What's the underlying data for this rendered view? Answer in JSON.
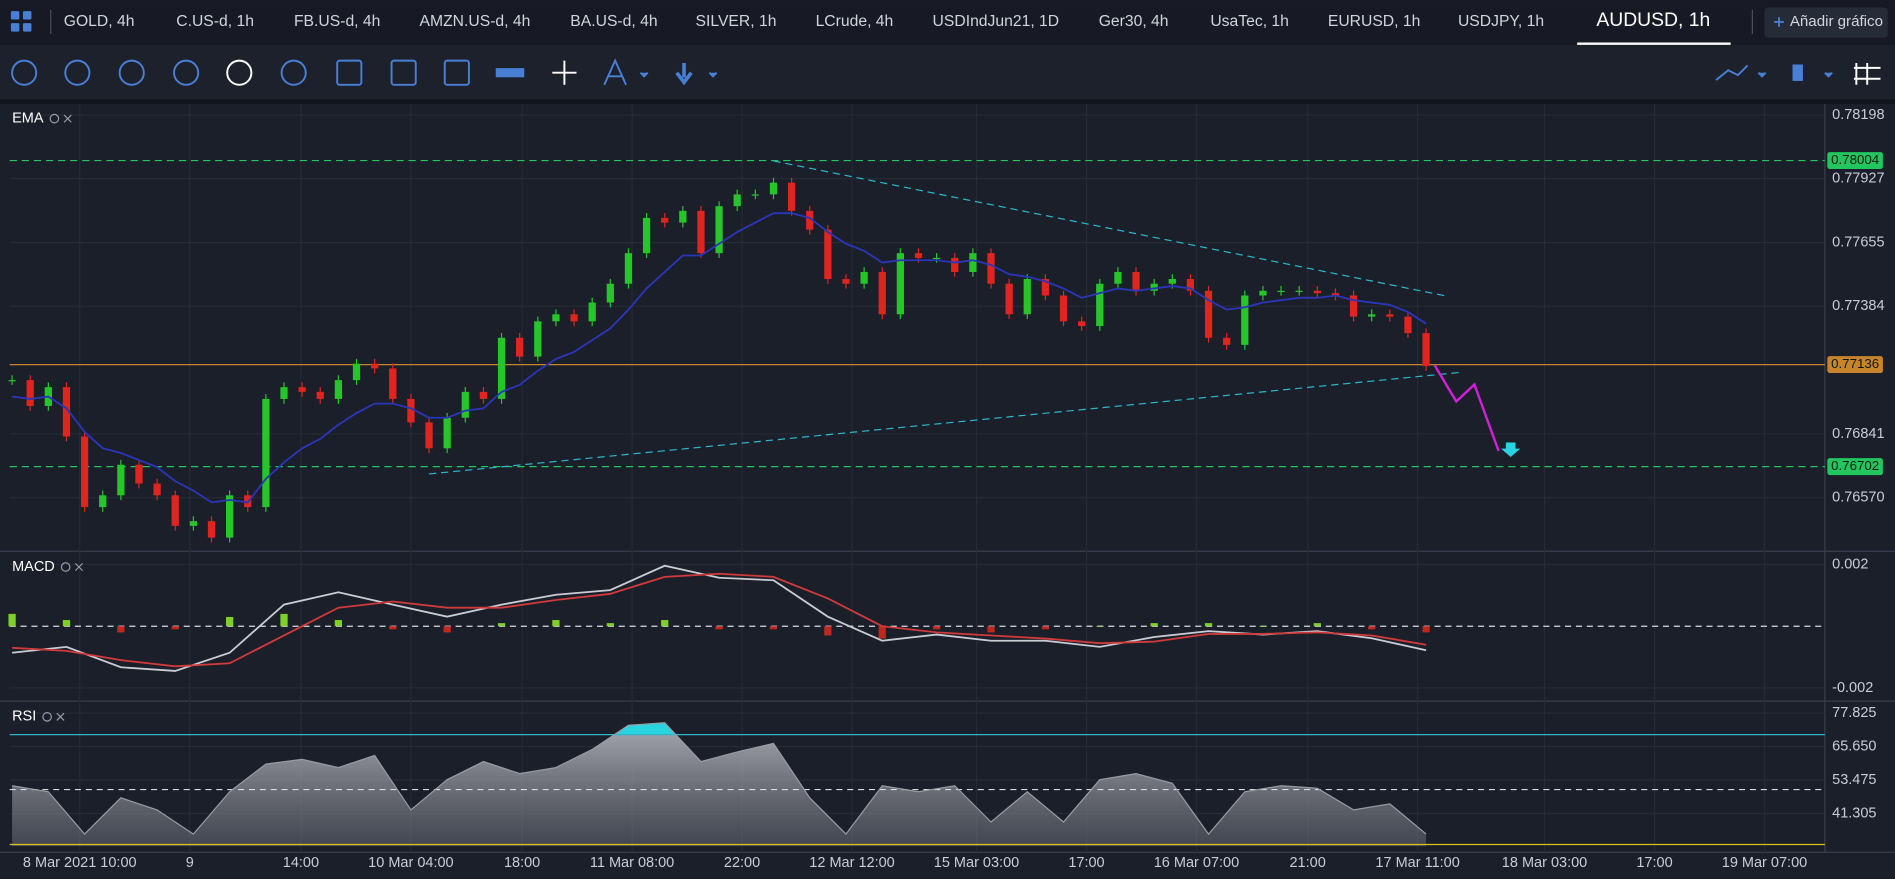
{
  "tabs": [
    "GOLD, 4h",
    "C.US-d, 1h",
    "FB.US-d, 4h",
    "AMZN.US-d, 4h",
    "BA.US-d, 4h",
    "SILVER, 1h",
    "LCrude, 4h",
    "USDIndJun21, 1D",
    "Ger30, 4h",
    "UsaTec, 1h",
    "EURUSD, 1h",
    "USDJPY, 1h"
  ],
  "active_tab": "AUDUSD, 1h",
  "add_chart_button": "Añadir gráfico",
  "chart_data": [
    {
      "type": "candlestick",
      "title": "EMA",
      "up_color": "#26c52a",
      "down_color": "#e0241f",
      "ema_color": "#2a35b8",
      "closes": [
        0.7707,
        0.7696,
        0.7704,
        0.7683,
        0.7653,
        0.7658,
        0.7671,
        0.7663,
        0.7658,
        0.7645,
        0.7647,
        0.764,
        0.7658,
        0.7653,
        0.7699,
        0.7704,
        0.7702,
        0.7699,
        0.7707,
        0.7714,
        0.7712,
        0.7699,
        0.7689,
        0.7678,
        0.7691,
        0.7702,
        0.7699,
        0.7725,
        0.7717,
        0.7732,
        0.7735,
        0.7732,
        0.774,
        0.7748,
        0.7761,
        0.7776,
        0.7774,
        0.7779,
        0.7761,
        0.7781,
        0.7786,
        0.7786,
        0.7791,
        0.7779,
        0.7771,
        0.775,
        0.7748,
        0.7753,
        0.7735,
        0.7761,
        0.7759,
        0.7759,
        0.7753,
        0.7761,
        0.7748,
        0.7735,
        0.775,
        0.7743,
        0.7732,
        0.773,
        0.7748,
        0.7753,
        0.7745,
        0.7748,
        0.775,
        0.7745,
        0.7725,
        0.7722,
        0.7743,
        0.7745,
        0.7745,
        0.7745,
        0.7744,
        0.7743,
        0.7734,
        0.7735,
        0.7734,
        0.7727,
        0.7713
      ],
      "ema": [
        0.77,
        0.7699,
        0.77,
        0.7695,
        0.7685,
        0.7678,
        0.7676,
        0.7673,
        0.767,
        0.7664,
        0.766,
        0.7655,
        0.7656,
        0.7655,
        0.7665,
        0.7672,
        0.7678,
        0.7682,
        0.7688,
        0.7693,
        0.7697,
        0.7697,
        0.7695,
        0.7691,
        0.7691,
        0.7694,
        0.7695,
        0.7702,
        0.7705,
        0.7711,
        0.7716,
        0.7719,
        0.7724,
        0.7729,
        0.7737,
        0.7746,
        0.7753,
        0.776,
        0.776,
        0.7765,
        0.777,
        0.7774,
        0.7778,
        0.7778,
        0.7776,
        0.777,
        0.7765,
        0.7762,
        0.7757,
        0.7758,
        0.7758,
        0.7758,
        0.7757,
        0.7758,
        0.7756,
        0.7752,
        0.7751,
        0.7749,
        0.7746,
        0.7742,
        0.7744,
        0.7746,
        0.7745,
        0.7746,
        0.7747,
        0.7746,
        0.7741,
        0.7737,
        0.7738,
        0.774,
        0.7741,
        0.7742,
        0.7742,
        0.7743,
        0.7741,
        0.774,
        0.7739,
        0.7736,
        0.7731
      ],
      "ylim": [
        0.76347,
        0.78244
      ],
      "yticks": [
        0.78198,
        0.77927,
        0.77655,
        0.77384,
        0.76841,
        {
          "value": 0.7657,
          "label": "0.76570"
        }
      ],
      "levels": [
        {
          "value": 0.78004,
          "color": "#22c55e"
        },
        {
          "value": 0.77136,
          "color": "#c8842a"
        },
        {
          "value": 0.76702,
          "color": "#22c55e"
        }
      ],
      "x_labels": [
        "8 Mar 2021 10:00",
        "9",
        "14:00",
        "10 Mar 04:00",
        "18:00",
        "11 Mar 08:00",
        "22:00",
        "12 Mar 12:00",
        "15 Mar 03:00",
        "17:00",
        "16 Mar 07:00",
        "21:00",
        "17 Mar 11:00",
        "18 Mar 03:00",
        "17:00",
        "19 Mar 07:00"
      ]
    },
    {
      "type": "macd",
      "title": "MACD",
      "macd_color": "#c9ccd3",
      "signal_color": "#d03a3a",
      "macd": [
        -0.00086,
        -0.00067,
        -0.00133,
        -0.00145,
        -0.00086,
        0.0007,
        0.0011,
        0.0007,
        0.00031,
        0.0007,
        0.00102,
        0.00117,
        0.00196,
        0.00157,
        0.00149,
        0.00031,
        -0.00047,
        -0.00027,
        -0.00047,
        -0.00047,
        -0.00067,
        -0.00035,
        -0.00016,
        -0.00027,
        -0.00016,
        -0.00039,
        -0.00078
      ],
      "signal": [
        -0.0007,
        -0.0008,
        -0.0011,
        -0.0013,
        -0.0012,
        -0.0003,
        0.0006,
        0.0008,
        0.0006,
        0.0006,
        0.00085,
        0.00105,
        0.0016,
        0.0017,
        0.0016,
        0.0009,
        0.0,
        -0.0002,
        -0.0003,
        -0.0004,
        -0.00055,
        -0.0005,
        -0.00025,
        -0.00025,
        -0.0002,
        -0.0003,
        -0.0006
      ],
      "histogram": [
        0.0004,
        0.0002,
        -0.0002,
        -0.0001,
        0.0003,
        0.0004,
        0.0002,
        -0.0001,
        -0.0002,
        0.0001,
        0.0002,
        0.0001,
        0.0002,
        -0.0001,
        -0.0001,
        -0.0003,
        -0.0004,
        -0.0001,
        -0.0002,
        -0.0001,
        0,
        0.0001,
        0.0001,
        0,
        0.0001,
        -0.0001,
        -0.0002
      ],
      "ylim": [
        -0.00235,
        0.00235
      ],
      "yticks": [
        0.002,
        -0.002
      ]
    },
    {
      "type": "rsi",
      "title": "RSI",
      "color": "#9a9ca3",
      "overbought_color": "#2bd3e0",
      "values": [
        51.4,
        49.2,
        33.8,
        47.0,
        42.6,
        33.8,
        49.2,
        59.3,
        61.0,
        58.0,
        62.4,
        42.6,
        53.6,
        60.2,
        55.8,
        58.0,
        64.6,
        73.4,
        74.3,
        60.2,
        63.7,
        66.8,
        47.0,
        33.8,
        51.4,
        49.2,
        51.4,
        38.2,
        49.2,
        38.2,
        53.6,
        55.8,
        52.3,
        33.8,
        49.2,
        51.4,
        50.5,
        42.6,
        44.8,
        33.8
      ],
      "ylim": [
        27.2,
        81.3
      ],
      "yticks": [
        77.825,
        {
          "value": 65.65,
          "label": "65.650"
        },
        53.475,
        41.305
      ],
      "levels": [
        {
          "value": 70,
          "color": "#2bb7c9",
          "dash": false
        },
        {
          "value": 50,
          "color": "#d8dbe2",
          "dash": true
        },
        {
          "value": 30,
          "color": "#d9c21b",
          "dash": false
        }
      ]
    }
  ]
}
